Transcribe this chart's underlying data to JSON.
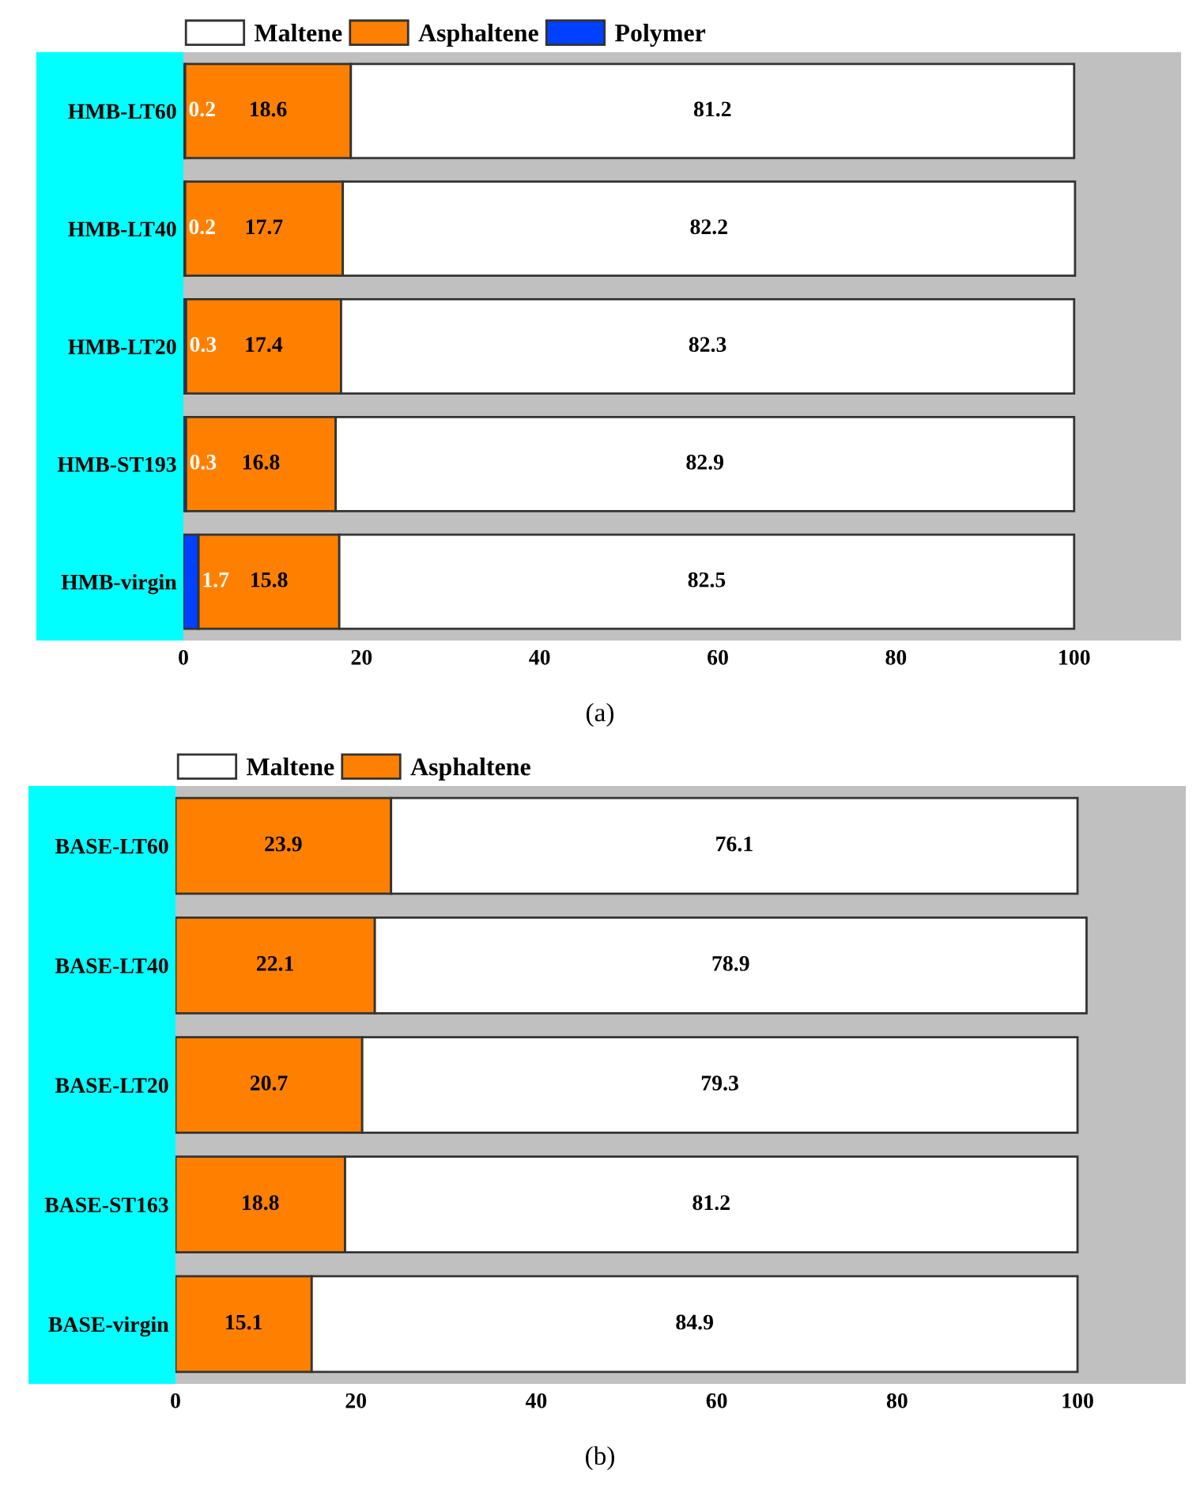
{
  "chart_data": [
    {
      "type": "bar",
      "orientation": "horizontal",
      "stacked": true,
      "categories": [
        "HMB-LT60",
        "HMB-LT40",
        "HMB-LT20",
        "HMB-ST193",
        "HMB-virgin"
      ],
      "series": [
        {
          "name": "Polymer",
          "color": "#0040ff",
          "values": [
            0.2,
            0.2,
            0.3,
            0.3,
            1.7
          ]
        },
        {
          "name": "Asphaltene",
          "color": "#ff8000",
          "values": [
            18.6,
            17.7,
            17.4,
            16.8,
            15.8
          ]
        },
        {
          "name": "Maltene",
          "color": "#ffffff",
          "values": [
            81.2,
            82.2,
            82.3,
            82.9,
            82.5
          ]
        }
      ],
      "xlim": [
        0,
        112
      ],
      "xticks": [
        0,
        20,
        40,
        60,
        80,
        100
      ],
      "data_labels": true,
      "legend": "top left",
      "annotations": [
        "(a)"
      ]
    },
    {
      "type": "bar",
      "orientation": "horizontal",
      "stacked": true,
      "categories": [
        "BASE-LT60",
        "BASE-LT40",
        "BASE-LT20",
        "BASE-ST163",
        "BASE-virgin"
      ],
      "series": [
        {
          "name": "Asphaltene",
          "color": "#ff8000",
          "values": [
            23.9,
            22.1,
            20.7,
            18.8,
            15.1
          ]
        },
        {
          "name": "Maltene",
          "color": "#ffffff",
          "values": [
            76.1,
            78.9,
            79.3,
            81.2,
            84.9
          ]
        }
      ],
      "xlim": [
        0,
        112
      ],
      "xticks": [
        0,
        20,
        40,
        60,
        80,
        100
      ],
      "data_labels": true,
      "legend": "top left",
      "annotations": [
        "(b)"
      ]
    }
  ]
}
